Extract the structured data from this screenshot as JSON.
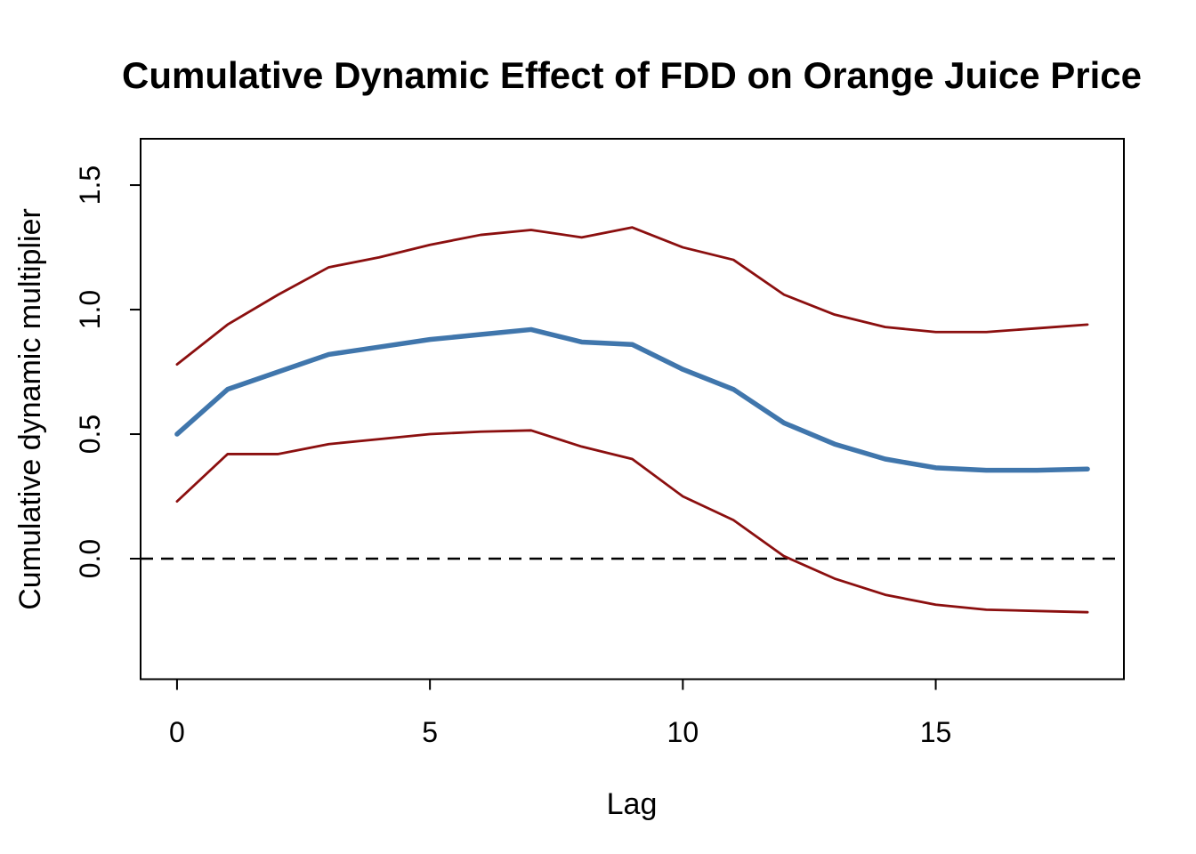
{
  "figure": {
    "title": "Cumulative Dynamic Effect of FDD on Orange Juice Price",
    "x_axis_label": "Lag",
    "y_axis_label": "Cumulative dynamic multiplier"
  },
  "colors": {
    "multiplier_line": "#4076AC",
    "confidence_band": "#8B0F0F",
    "axis": "#000000",
    "reference_line": "#000000",
    "background": "#FFFFFF"
  },
  "chart_data": {
    "type": "line",
    "title": "Cumulative Dynamic Effect of FDD on Orange Juice Price",
    "xlabel": "Lag",
    "ylabel": "Cumulative dynamic multiplier",
    "grid": false,
    "legend": null,
    "x": [
      0,
      1,
      2,
      3,
      4,
      5,
      6,
      7,
      8,
      9,
      10,
      11,
      12,
      13,
      14,
      15,
      16,
      17,
      18
    ],
    "series": [
      {
        "name": "cumulative-dynamic-multiplier",
        "color_key": "multiplier_line",
        "line_width": 5.5,
        "values": [
          0.5,
          0.68,
          0.75,
          0.82,
          0.85,
          0.88,
          0.9,
          0.92,
          0.87,
          0.86,
          0.76,
          0.68,
          0.545,
          0.46,
          0.4,
          0.365,
          0.355,
          0.355,
          0.36
        ]
      },
      {
        "name": "upper-confidence-band",
        "color_key": "confidence_band",
        "line_width": 2.8,
        "values": [
          0.78,
          0.94,
          1.06,
          1.17,
          1.21,
          1.26,
          1.3,
          1.32,
          1.29,
          1.33,
          1.25,
          1.2,
          1.06,
          0.98,
          0.93,
          0.91,
          0.91,
          0.925,
          0.94
        ]
      },
      {
        "name": "lower-confidence-band",
        "color_key": "confidence_band",
        "line_width": 2.8,
        "values": [
          0.23,
          0.42,
          0.42,
          0.46,
          0.48,
          0.5,
          0.51,
          0.515,
          0.45,
          0.4,
          0.25,
          0.155,
          0.01,
          -0.08,
          -0.145,
          -0.185,
          -0.205,
          -0.21,
          -0.215
        ]
      }
    ],
    "reference_line": {
      "y": 0,
      "style": "dashed"
    },
    "x_ticks": [
      0,
      5,
      10,
      15
    ],
    "x_tick_labels": [
      "0",
      "5",
      "10",
      "15"
    ],
    "y_ticks": [
      0.0,
      0.5,
      1.0,
      1.5
    ],
    "y_tick_labels": [
      "0.0",
      "0.5",
      "1.0",
      "1.5"
    ],
    "xlim": [
      -0.72,
      18.72
    ],
    "ylim": [
      -0.484,
      1.686
    ]
  }
}
